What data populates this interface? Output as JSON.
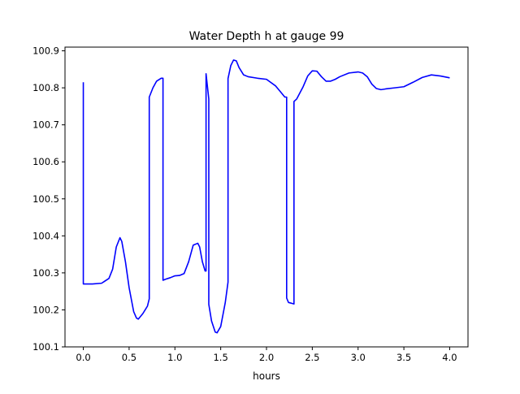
{
  "chart_data": {
    "type": "line",
    "title": "Water Depth h at gauge 99",
    "xlabel": "hours",
    "ylabel": "",
    "xlim": [
      -0.2,
      4.2
    ],
    "ylim": [
      100.1,
      100.91
    ],
    "xticks": [
      0.0,
      0.5,
      1.0,
      1.5,
      2.0,
      2.5,
      3.0,
      3.5,
      4.0
    ],
    "xtick_labels": [
      "0.0",
      "0.5",
      "1.0",
      "1.5",
      "2.0",
      "2.5",
      "3.0",
      "3.5",
      "4.0"
    ],
    "yticks": [
      100.1,
      100.2,
      100.3,
      100.4,
      100.5,
      100.6,
      100.7,
      100.8,
      100.9
    ],
    "ytick_labels": [
      "100.1",
      "100.2",
      "100.3",
      "100.4",
      "100.5",
      "100.6",
      "100.7",
      "100.8",
      "100.9"
    ],
    "grid": false,
    "legend": "none",
    "series": [
      {
        "color": "#0000ff",
        "x": [
          0.0,
          0.0,
          0.01,
          0.1,
          0.2,
          0.28,
          0.32,
          0.36,
          0.4,
          0.42,
          0.46,
          0.5,
          0.55,
          0.58,
          0.6,
          0.65,
          0.7,
          0.72,
          0.72,
          0.76,
          0.8,
          0.85,
          0.87,
          0.87,
          0.9,
          0.95,
          1.0,
          1.05,
          1.1,
          1.15,
          1.2,
          1.25,
          1.27,
          1.3,
          1.33,
          1.34,
          1.34,
          1.37,
          1.37,
          1.4,
          1.44,
          1.46,
          1.5,
          1.55,
          1.58,
          1.58,
          1.61,
          1.64,
          1.67,
          1.7,
          1.75,
          1.8,
          1.9,
          2.0,
          2.1,
          2.15,
          2.2,
          2.22,
          2.22,
          2.24,
          2.3,
          2.3,
          2.33,
          2.4,
          2.45,
          2.5,
          2.55,
          2.6,
          2.65,
          2.7,
          2.75,
          2.8,
          2.9,
          3.0,
          3.05,
          3.1,
          3.15,
          3.2,
          3.25,
          3.3,
          3.4,
          3.5,
          3.6,
          3.7,
          3.8,
          3.9,
          4.0
        ],
        "y": [
          100.815,
          100.27,
          100.27,
          100.27,
          100.272,
          100.285,
          100.31,
          100.37,
          100.395,
          100.385,
          100.33,
          100.26,
          100.195,
          100.178,
          100.175,
          100.19,
          100.21,
          100.23,
          100.775,
          100.8,
          100.818,
          100.826,
          100.826,
          100.28,
          100.283,
          100.287,
          100.292,
          100.293,
          100.298,
          100.33,
          100.375,
          100.38,
          100.37,
          100.33,
          100.305,
          100.305,
          100.838,
          100.77,
          100.215,
          100.17,
          100.14,
          100.138,
          100.155,
          100.22,
          100.275,
          100.825,
          100.86,
          100.875,
          100.873,
          100.855,
          100.835,
          100.83,
          100.826,
          100.823,
          100.805,
          100.79,
          100.775,
          100.775,
          100.232,
          100.22,
          100.216,
          100.763,
          100.77,
          100.803,
          100.832,
          100.846,
          100.845,
          100.83,
          100.818,
          100.818,
          100.823,
          100.83,
          100.84,
          100.843,
          100.84,
          100.83,
          100.81,
          100.798,
          100.795,
          100.797,
          100.8,
          100.803,
          100.815,
          100.828,
          100.835,
          100.832,
          100.827
        ]
      }
    ]
  }
}
